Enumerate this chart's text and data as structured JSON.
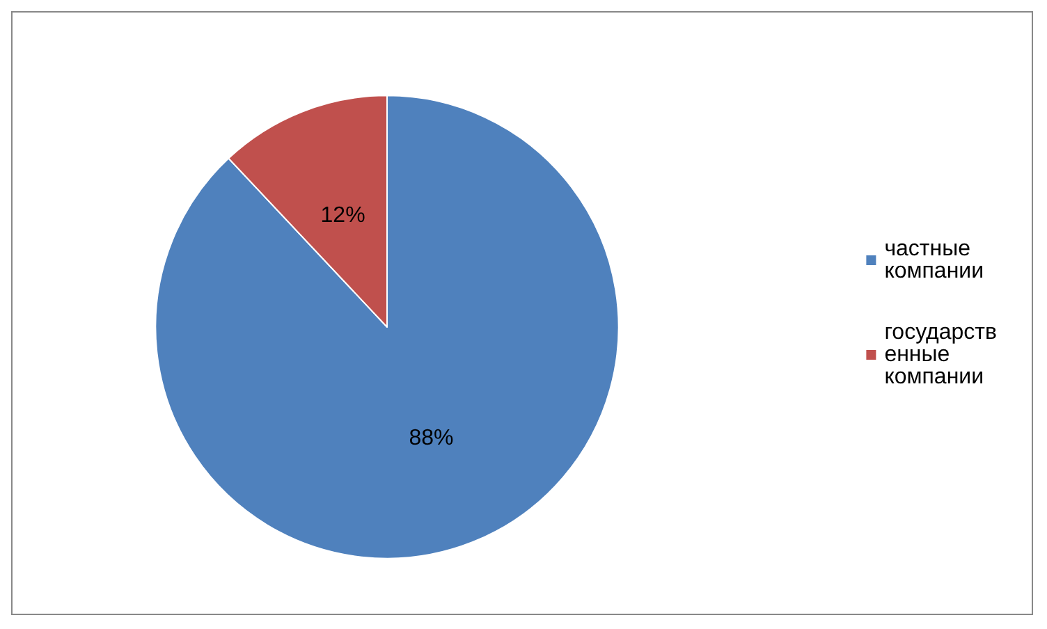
{
  "chart_data": {
    "type": "pie",
    "categories": [
      "частные компании",
      "государственные компании"
    ],
    "values": [
      88,
      12
    ],
    "colors": [
      "#4f81bd",
      "#c0504d"
    ],
    "value_labels": [
      "88%",
      "12%"
    ],
    "legend": "right"
  }
}
